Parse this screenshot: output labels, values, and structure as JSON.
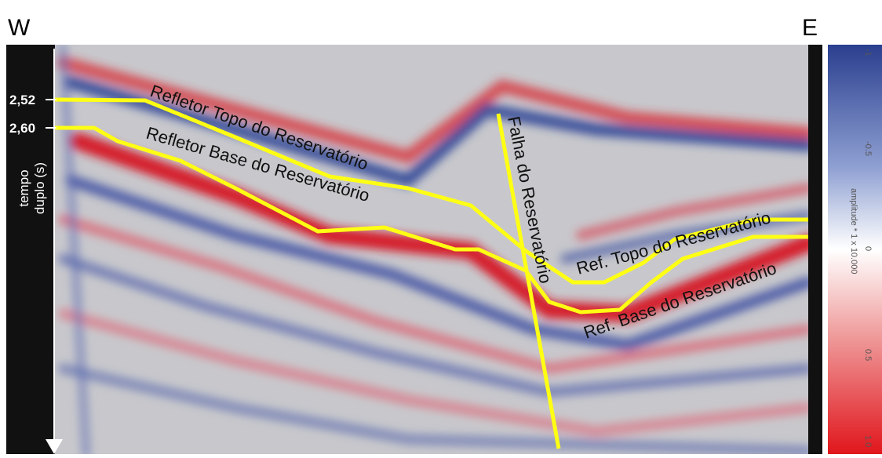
{
  "header": {
    "west": "W",
    "east": "E"
  },
  "axis": {
    "label_line1": "tempo",
    "label_line2": "duplo (s)",
    "ticks": [
      "2,52",
      "2,60"
    ]
  },
  "annotations": {
    "top_reflector": "Refletor Topo do Reservatório",
    "base_reflector": "Refletor Base do Reservatório",
    "fault": "Falha do Reservatório",
    "ref_top": "Ref. Topo do Reservatório",
    "ref_base": "Ref. Base do Reservatório"
  },
  "colorbar": {
    "label": "amplitude * 1 x 10.000",
    "ticks": [
      "-1",
      "-0.5",
      "0",
      "0.5",
      "1.0"
    ]
  }
}
